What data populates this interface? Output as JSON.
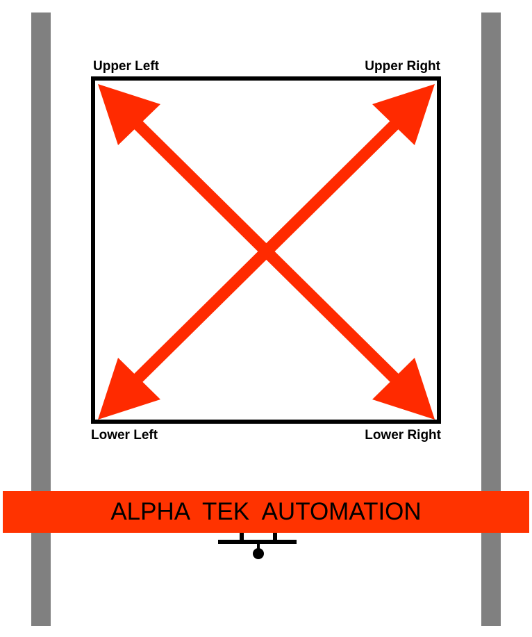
{
  "labels": {
    "upper_left": "Upper Left",
    "upper_right": "Upper Right",
    "lower_left": "Lower Left",
    "lower_right": "Lower Right"
  },
  "banner": {
    "text": "ALPHA  TEK  AUTOMATION"
  },
  "colors": {
    "arrow": "#ff2a00",
    "banner": "#ff3300",
    "rail": "#808080",
    "frame": "#000000"
  }
}
